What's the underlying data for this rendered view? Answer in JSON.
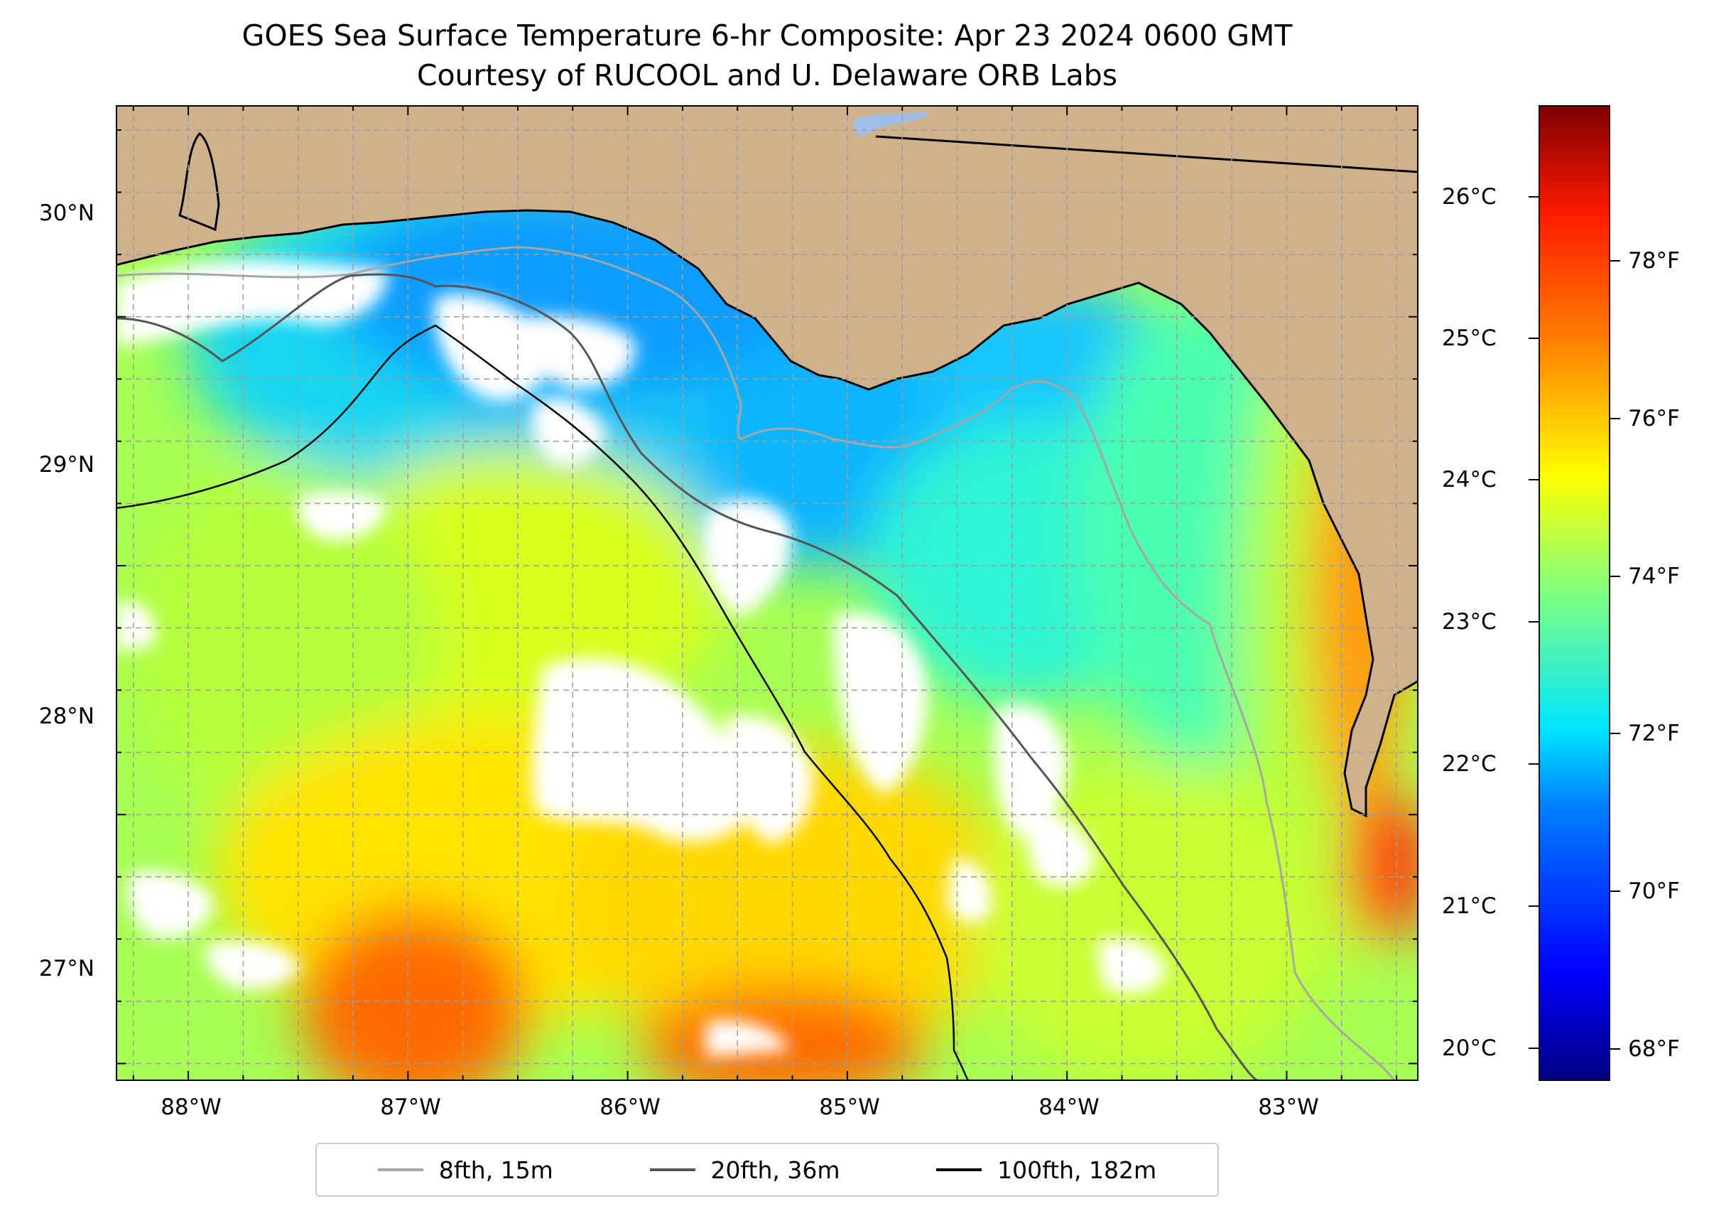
{
  "title": {
    "line1": "GOES Sea Surface Temperature 6-hr Composite: Apr 23 2024 0600 GMT",
    "line2": "Courtesy of RUCOOL and U. Delaware ORB Labs"
  },
  "map": {
    "latitude_labels": [
      "30°N",
      "29°N",
      "28°N",
      "27°N"
    ],
    "longitude_labels": [
      "88°W",
      "87°W",
      "86°W",
      "85°W",
      "84°W",
      "83°W"
    ],
    "lat_range": [
      26.93,
      30.85
    ],
    "lon_range": [
      -88.33,
      -82.4
    ],
    "colors": {
      "land": "#cfb28b",
      "no_data": "#ffffff",
      "lake": "#9fbfe6"
    }
  },
  "colorbar": {
    "celsius_labels": [
      "26°C",
      "25°C",
      "24°C",
      "23°C",
      "22°C",
      "21°C",
      "20°C"
    ],
    "fahrenheit_labels": [
      "78°F",
      "76°F",
      "74°F",
      "72°F",
      "70°F",
      "68°F"
    ],
    "colormap": "jet"
  },
  "legend": {
    "items": [
      {
        "label": "8fth, 15m",
        "color": "#a6a6a6"
      },
      {
        "label": "20fth, 36m",
        "color": "#555555"
      },
      {
        "label": "100fth, 182m",
        "color": "#000000"
      }
    ]
  }
}
